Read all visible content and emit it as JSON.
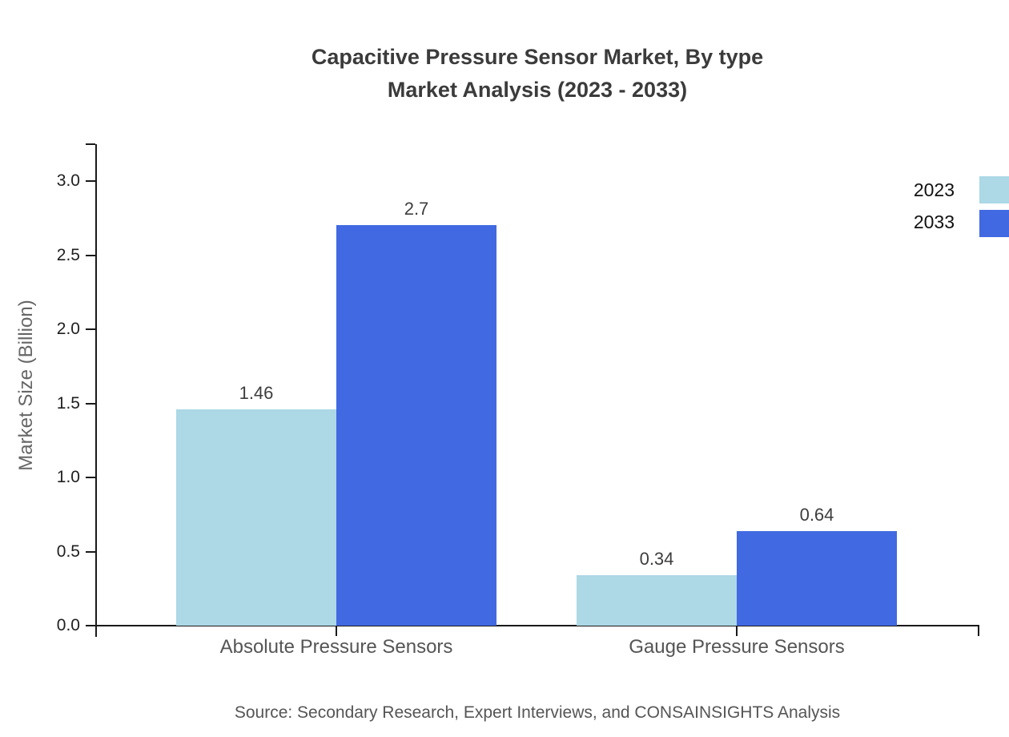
{
  "chart_data": {
    "type": "bar",
    "title": "Capacitive Pressure Sensor Market, By type Market Analysis (2023 - 2033)",
    "title_line1": "Capacitive Pressure Sensor Market, By type",
    "title_line2": "Market Analysis (2023 - 2033)",
    "xlabel": "",
    "ylabel": "Market Size (Billion)",
    "categories": [
      "Absolute Pressure Sensors",
      "Gauge Pressure Sensors"
    ],
    "series": [
      {
        "name": "2023",
        "color": "#ADD8E6",
        "values": [
          1.46,
          0.34
        ],
        "labels": [
          "1.46",
          "0.34"
        ]
      },
      {
        "name": "2033",
        "color": "#4169E1",
        "values": [
          2.7,
          0.64
        ],
        "labels": [
          "2.7",
          "0.64"
        ]
      }
    ],
    "yticks": [
      0.0,
      0.5,
      1.0,
      1.5,
      2.0,
      2.5,
      3.0
    ],
    "ytick_labels": [
      "0.0",
      "0.5",
      "1.0",
      "1.5",
      "2.0",
      "2.5",
      "3.0"
    ],
    "ylim": [
      0,
      3.25
    ],
    "grid": false,
    "legend_position": "top-right",
    "axis_color": "#1a1a1a"
  },
  "footer": {
    "source": "Source: Secondary Research, Expert Interviews, and CONSAINSIGHTS Analysis"
  }
}
